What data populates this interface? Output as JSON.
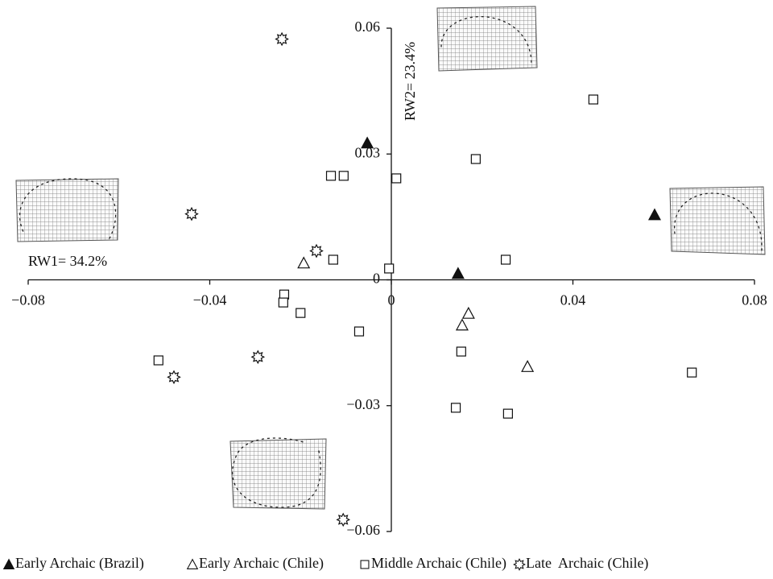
{
  "chart_data": {
    "type": "scatter",
    "x_label": "RW1= 34.2%",
    "y_label": "RW2= 23.4%",
    "xlim": [
      -0.08,
      0.08
    ],
    "ylim": [
      -0.06,
      0.06
    ],
    "xticks": [
      {
        "value": -0.08,
        "label": "−0.08"
      },
      {
        "value": -0.04,
        "label": "−0.04"
      },
      0,
      0.04,
      0.08
    ],
    "yticks": [
      {
        "value": -0.06,
        "label": "−0.06"
      },
      {
        "value": -0.03,
        "label": "−0.03"
      },
      0,
      0.03,
      0.06
    ],
    "series": [
      {
        "name": "Early Archaic (Brazil)",
        "marker": "triangle-filled",
        "color": "#111111",
        "x": [
          -0.0053,
          0.0147,
          0.058
        ],
        "values": [
          0.0326,
          0.0015,
          0.0155
        ]
      },
      {
        "name": "Early Archaic (Chile)",
        "marker": "triangle-open",
        "color": "#111111",
        "x": [
          -0.0193,
          0.017,
          0.0156,
          0.03
        ],
        "values": [
          0.004,
          -0.008,
          -0.0108,
          -0.0207
        ]
      },
      {
        "name": "Middle Archaic (Chile)",
        "marker": "square-open",
        "color": "#111111",
        "x": [
          0.0445,
          0.0186,
          -0.0133,
          -0.0105,
          0.0011,
          -0.0128,
          -0.0005,
          0.0252,
          -0.0236,
          -0.0238,
          -0.02,
          -0.0071,
          -0.0513,
          0.0154,
          0.0662,
          0.0142,
          0.0257
        ],
        "values": [
          0.043,
          0.0288,
          0.0248,
          0.0248,
          0.0242,
          0.0048,
          0.0027,
          0.0048,
          -0.0035,
          -0.0054,
          -0.0079,
          -0.0123,
          -0.0192,
          -0.0171,
          -0.0221,
          -0.0305,
          -0.0319
        ]
      },
      {
        "name": "Late  Archaic (Chile)",
        "marker": "star-open",
        "color": "#111111",
        "x": [
          -0.0241,
          -0.044,
          -0.0165,
          -0.0294,
          -0.0479,
          -0.0106
        ],
        "values": [
          0.0574,
          0.0157,
          0.0069,
          -0.0184,
          -0.0232,
          -0.0572
        ]
      }
    ]
  }
}
